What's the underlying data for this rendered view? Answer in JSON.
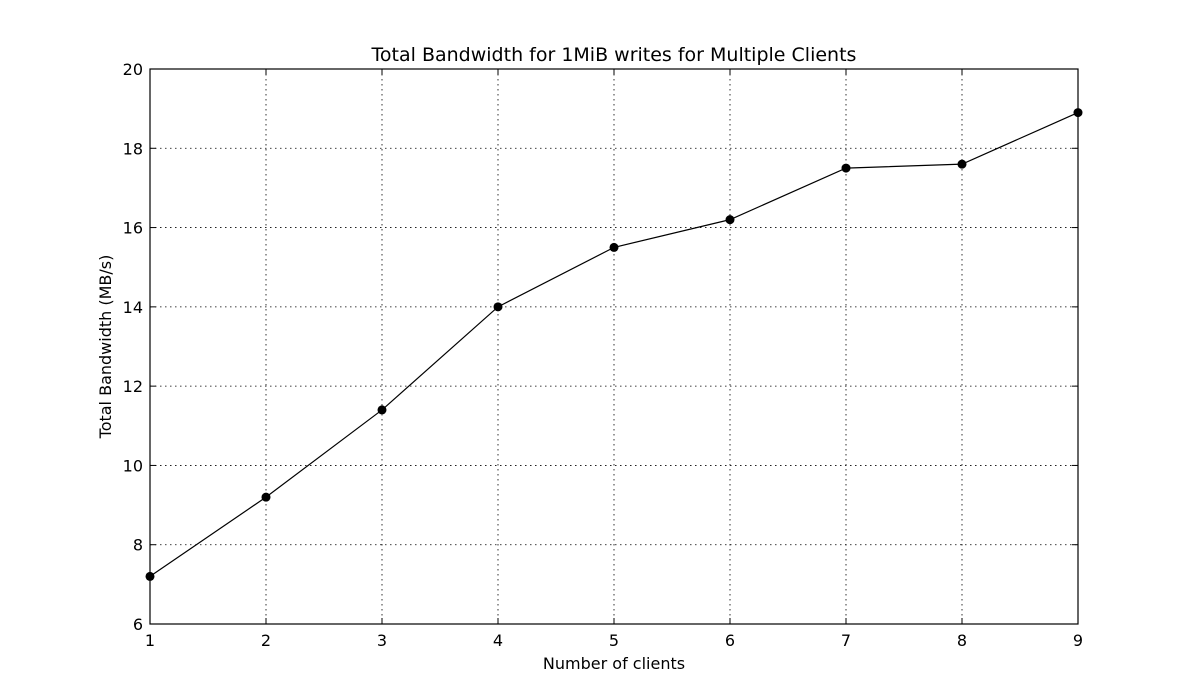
{
  "chart_data": {
    "type": "line",
    "title": "Total Bandwidth for 1MiB writes for Multiple Clients",
    "xlabel": "Number of clients",
    "ylabel": "Total Bandwidth (MB/s)",
    "x": [
      1,
      2,
      3,
      4,
      5,
      6,
      7,
      8,
      9
    ],
    "series": [
      {
        "values": [
          7.2,
          9.2,
          11.4,
          14.0,
          15.5,
          16.2,
          17.5,
          17.6,
          18.9
        ],
        "color": "#000000",
        "marker": "circle"
      }
    ],
    "xlim": [
      1,
      9
    ],
    "ylim": [
      6,
      20
    ],
    "xticks": [
      "1",
      "2",
      "3",
      "4",
      "5",
      "6",
      "7",
      "8",
      "9"
    ],
    "yticks": [
      "6",
      "8",
      "10",
      "12",
      "14",
      "16",
      "18",
      "20"
    ],
    "grid": true
  }
}
